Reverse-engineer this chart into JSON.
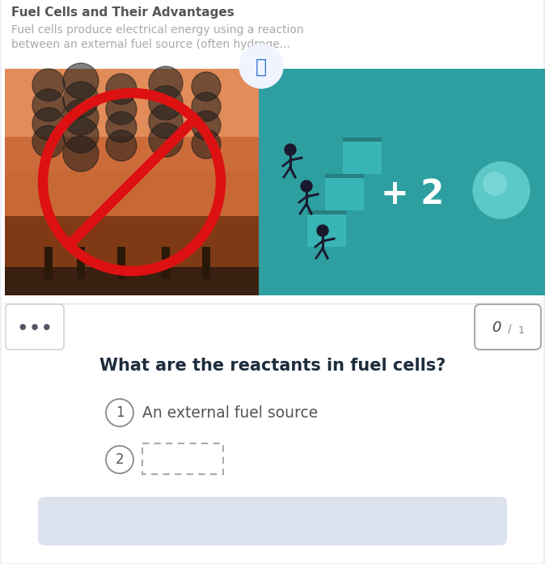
{
  "bg_color": "#eef0f5",
  "panel_bg": "#ffffff",
  "title_bold": "Fuel Cells and Their Advantages",
  "title_bold_color": "#555555",
  "title_bold_size": 11,
  "subtitle_text": "Fuel cells produce electrical energy using a reaction\nbetween an external fuel source (often hydroge...",
  "subtitle_color": "#aaaaaa",
  "subtitle_size": 10,
  "left_bg_top": "#d4834a",
  "left_bg_mid": "#b85c28",
  "left_bg_bot": "#8b3510",
  "left_ground": "#4a3020",
  "right_bg": "#2e9fa0",
  "stair_color": "#3ab5b6",
  "stair_shadow": "#267f80",
  "sphere_color": "#5dc8c8",
  "sphere_highlight": "#8ee0e0",
  "figure_color": "#1a1a2e",
  "no_sign_color": "#dd1111",
  "plus2_color": "#ffffff",
  "book_bg": "#f0f4ff",
  "book_color": "#3575d4",
  "toolbar_bg": "#f0f2f8",
  "dots_box_bg": "#ffffff",
  "dots_box_edge": "#cccccc",
  "dots_color": "#555566",
  "score_box_bg": "#ffffff",
  "score_box_edge": "#aaaaaa",
  "score_0_color": "#444444",
  "score_1_color": "#888888",
  "question_color": "#1e2d3d",
  "question_text": "What are the reactants in fuel cells?",
  "answer_circle_edge": "#888888",
  "answer_text_color": "#555555",
  "answer1_text": "An external fuel source",
  "dashed_rect_edge": "#aaaaaa",
  "bottom_bar_color": "#dde2ef",
  "separator_color": "#dde2ef"
}
